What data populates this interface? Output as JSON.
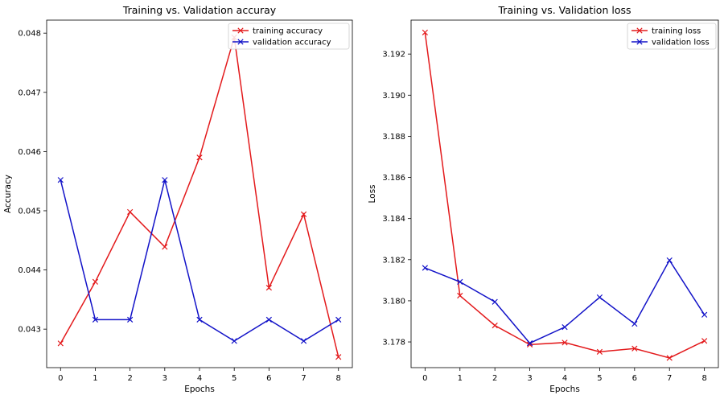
{
  "chart_data": [
    {
      "type": "line",
      "title": "Training vs. Validation accuray",
      "xlabel": "Epochs",
      "ylabel": "Accuracy",
      "x": [
        0,
        1,
        2,
        3,
        4,
        5,
        6,
        7,
        8
      ],
      "xlim": [
        -0.4,
        8.4
      ],
      "ylim": [
        0.04235,
        0.04822
      ],
      "xticks": [
        0,
        1,
        2,
        3,
        4,
        5,
        6,
        7,
        8
      ],
      "yticks": [
        0.043,
        0.044,
        0.045,
        0.046,
        0.047,
        0.048
      ],
      "ytick_labels": [
        "0.043",
        "0.044",
        "0.045",
        "0.046",
        "0.047",
        "0.048"
      ],
      "grid": false,
      "legend_position": "top-right",
      "series": [
        {
          "name": "training accuracy",
          "color": "#e31a1c",
          "marker": "x",
          "values": [
            0.04276,
            0.0438,
            0.04498,
            0.04439,
            0.0459,
            0.04793,
            0.0437,
            0.04494,
            0.04253
          ]
        },
        {
          "name": "validation accuracy",
          "color": "#1212c8",
          "marker": "x",
          "values": [
            0.04552,
            0.04316,
            0.04316,
            0.04552,
            0.04316,
            0.0428,
            0.04316,
            0.0428,
            0.04316
          ]
        }
      ]
    },
    {
      "type": "line",
      "title": "Training vs. Validation loss",
      "xlabel": "Epochs",
      "ylabel": "Loss",
      "x": [
        0,
        1,
        2,
        3,
        4,
        5,
        6,
        7,
        8
      ],
      "xlim": [
        -0.4,
        8.4
      ],
      "ylim": [
        3.17675,
        3.19365
      ],
      "xticks": [
        0,
        1,
        2,
        3,
        4,
        5,
        6,
        7,
        8
      ],
      "yticks": [
        3.178,
        3.18,
        3.182,
        3.184,
        3.186,
        3.188,
        3.19,
        3.192
      ],
      "ytick_labels": [
        "3.178",
        "3.180",
        "3.182",
        "3.184",
        "3.186",
        "3.188",
        "3.190",
        "3.192"
      ],
      "grid": false,
      "legend_position": "top-right",
      "series": [
        {
          "name": "training loss",
          "color": "#e31a1c",
          "marker": "x",
          "values": [
            3.19305,
            3.18025,
            3.1788,
            3.17787,
            3.17797,
            3.17752,
            3.17768,
            3.17722,
            3.17805
          ]
        },
        {
          "name": "validation loss",
          "color": "#1212c8",
          "marker": "x",
          "values": [
            3.1816,
            3.18092,
            3.17995,
            3.17794,
            3.17872,
            3.18017,
            3.17888,
            3.18197,
            3.17932
          ]
        }
      ]
    }
  ]
}
